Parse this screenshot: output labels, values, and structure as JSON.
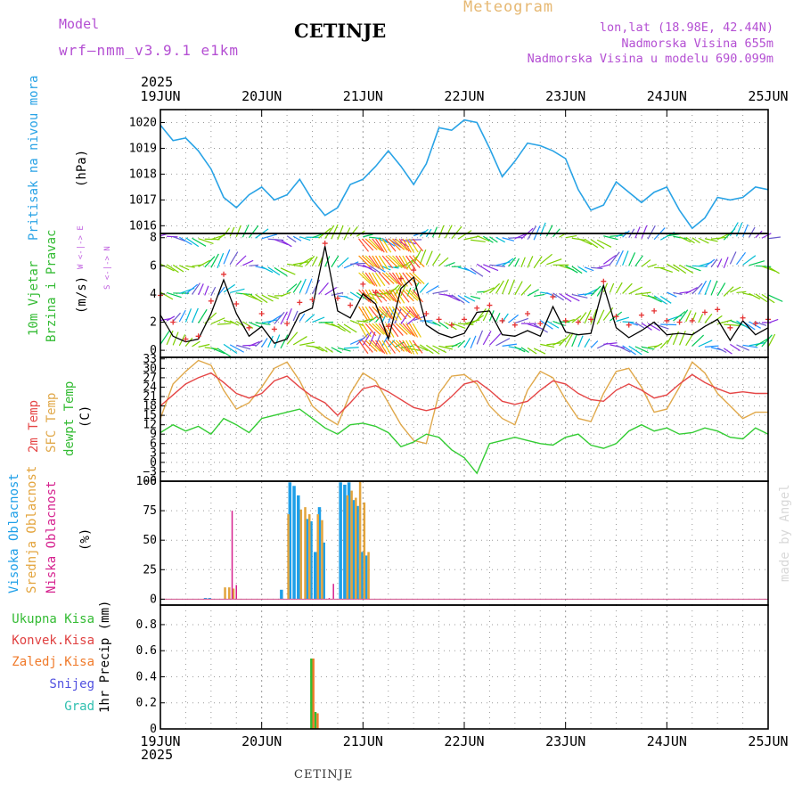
{
  "header": {
    "model_label": "Model",
    "model_name": "wrf—nmm_v3.9.1  e1km",
    "station": "CETINJE",
    "meteogram": "Meteogram",
    "lonlat": "lon,lat (18.98E, 42.44N)",
    "altitude": "Nadmorska Visina 655m",
    "model_altitude": "Nadmorska Visina u modelu 690.099m",
    "year_top": "2025",
    "year_bottom": "2025",
    "footer_station": "CETINJE",
    "watermark": "made by Angel"
  },
  "colors": {
    "pressure": "#29a3e6",
    "temp2m": "#e54646",
    "sfc_temp": "#e0a84a",
    "dewpoint": "#33cc33",
    "wind_speed": "#000000",
    "gust": "#e53333",
    "high_cloud": "#1e9fe8",
    "mid_cloud": "#e3a43c",
    "low_cloud": "#d6228f",
    "total_precip": "#33bb33",
    "conv_precip": "#e04040",
    "frozen_precip": "#f07a2a",
    "snow": "#5050e0",
    "graupel": "#30c0b0"
  },
  "x_axis": {
    "tick_labels": [
      "19JUN",
      "20JUN",
      "21JUN",
      "22JUN",
      "23JUN",
      "24JUN",
      "25JUN"
    ]
  },
  "panels": {
    "pressure": {
      "ylabel_1": "Pritisak na nivou mora",
      "ylabel_2": "(hPa)"
    },
    "wind": {
      "ylabel_1": "10m Vjetar",
      "ylabel_2": "Brzina i Pravac",
      "ylabel_3": "(m/s)",
      "compass": "W <-|-> E",
      "compass2": "S <-|-> N"
    },
    "temp": {
      "ylabel_1": "2m Temp",
      "ylabel_2": "SFC Temp",
      "ylabel_3": "dewpt Temp",
      "ylabel_4": "(C)"
    },
    "cloud": {
      "ylabel_1": "Visoka Oblacnost",
      "ylabel_2": "Srednja Oblacnost",
      "ylabel_3": "Niska Oblacnost",
      "ylabel_4": "(%)"
    },
    "precip": {
      "ylabel": "1hr Precip (mm)",
      "legend": [
        "Ukupna Kisa",
        "Konvek.Kisa",
        "Zaledj.Kisa",
        "Snijeg",
        "Grad"
      ]
    }
  },
  "chart_data": [
    {
      "type": "line",
      "title": "Pritisak na nivou mora",
      "ylabel": "(hPa)",
      "ylim": [
        1015.7,
        1020.5
      ],
      "yticks": [
        1016,
        1017,
        1018,
        1019,
        1020
      ],
      "x_hours": [
        0,
        3,
        6,
        9,
        12,
        15,
        18,
        21,
        24,
        27,
        30,
        33,
        36,
        39,
        42,
        45,
        48,
        51,
        54,
        57,
        60,
        63,
        66,
        69,
        72,
        75,
        78,
        81,
        84,
        87,
        90,
        93,
        96,
        99,
        102,
        105,
        108,
        111,
        114,
        117,
        120,
        123,
        126,
        129,
        132,
        135,
        138,
        141,
        144
      ],
      "series": [
        {
          "values": [
            1019.9,
            1019.3,
            1019.4,
            1018.9,
            1018.2,
            1017.1,
            1016.7,
            1017.2,
            1017.5,
            1017.0,
            1017.2,
            1017.8,
            1017.0,
            1016.4,
            1016.7,
            1017.6,
            1017.8,
            1018.3,
            1018.9,
            1018.3,
            1017.6,
            1018.4,
            1019.8,
            1019.7,
            1020.1,
            1020.0,
            1019.0,
            1017.9,
            1018.5,
            1019.2,
            1019.1,
            1018.9,
            1018.6,
            1017.4,
            1016.6,
            1016.8,
            1017.7,
            1017.3,
            1016.9,
            1017.3,
            1017.5,
            1016.6,
            1015.9,
            1016.3,
            1017.1,
            1017.0,
            1017.1,
            1017.5,
            1017.4
          ]
        }
      ],
      "grid": true
    },
    {
      "type": "line",
      "title": "10m Vjetar Brzina i Pravac",
      "ylabel": "(m/s)",
      "ylim": [
        -0.5,
        8.3
      ],
      "yticks": [
        0,
        2,
        4,
        6,
        8
      ],
      "x_hours": [
        0,
        3,
        6,
        9,
        12,
        15,
        18,
        21,
        24,
        27,
        30,
        33,
        36,
        39,
        42,
        45,
        48,
        51,
        54,
        57,
        60,
        63,
        66,
        69,
        72,
        75,
        78,
        81,
        84,
        87,
        90,
        93,
        96,
        99,
        102,
        105,
        108,
        111,
        114,
        117,
        120,
        123,
        126,
        129,
        132,
        135,
        138,
        141,
        144
      ],
      "series": [
        {
          "values": [
            2.5,
            1.0,
            0.6,
            0.8,
            2.6,
            5.0,
            2.6,
            1.0,
            1.7,
            0.5,
            0.8,
            2.6,
            3.0,
            7.4,
            2.8,
            2.3,
            4.0,
            3.3,
            0.8,
            4.4,
            5.2,
            1.8,
            1.2,
            0.9,
            1.2,
            2.7,
            2.8,
            1.1,
            1.0,
            1.4,
            1.0,
            3.1,
            1.3,
            1.1,
            1.2,
            4.6,
            1.6,
            0.9,
            1.4,
            2.0,
            1.1,
            1.2,
            1.1,
            1.7,
            2.2,
            0.7,
            2.1,
            1.1,
            1.6
          ]
        },
        {
          "values": [
            3.9,
            2.0,
            0.8,
            1.0,
            3.5,
            5.4,
            3.3,
            1.6,
            2.6,
            1.5,
            1.9,
            3.4,
            3.6,
            7.6,
            3.7,
            3.2,
            4.7,
            4.1,
            1.7,
            5.1,
            5.7,
            2.6,
            2.2,
            1.8,
            2.2,
            3.0,
            3.2,
            2.1,
            1.8,
            2.6,
            1.9,
            3.8,
            2.1,
            2.0,
            2.2,
            4.9,
            2.4,
            1.8,
            2.5,
            2.8,
            2.1,
            2.0,
            2.1,
            2.7,
            2.9,
            1.6,
            2.3,
            1.9,
            2.2
          ]
        }
      ],
      "grid": true
    },
    {
      "type": "line",
      "title": "2m Temp / SFC Temp / dewpt Temp",
      "ylabel": "(C)",
      "ylim": [
        -6,
        33.5
      ],
      "yticks": [
        -6,
        -3,
        0,
        3,
        6,
        9,
        12,
        15,
        18,
        21,
        24,
        27,
        30,
        33
      ],
      "x_hours": [
        0,
        3,
        6,
        9,
        12,
        15,
        18,
        21,
        24,
        27,
        30,
        33,
        36,
        39,
        42,
        45,
        48,
        51,
        54,
        57,
        60,
        63,
        66,
        69,
        72,
        75,
        78,
        81,
        84,
        87,
        90,
        93,
        96,
        99,
        102,
        105,
        108,
        111,
        114,
        117,
        120,
        123,
        126,
        129,
        132,
        135,
        138,
        141,
        144
      ],
      "series": [
        {
          "name": "2m Temp",
          "values": [
            18.0,
            21.5,
            25.0,
            27.0,
            28.5,
            25.5,
            22.0,
            20.5,
            22.0,
            26.0,
            27.5,
            24.0,
            21.0,
            19.0,
            15.0,
            19.0,
            23.5,
            24.5,
            22.5,
            20.0,
            17.5,
            16.5,
            17.5,
            21.0,
            25.0,
            26.0,
            23.0,
            19.5,
            18.5,
            19.5,
            23.0,
            26.0,
            25.0,
            22.0,
            20.0,
            19.5,
            23.0,
            25.0,
            23.0,
            20.5,
            21.5,
            25.0,
            28.0,
            25.5,
            23.5,
            22.0,
            22.5,
            22.0,
            22.0
          ]
        },
        {
          "name": "SFC Temp",
          "values": [
            14.0,
            25.0,
            29.0,
            32.5,
            31.0,
            23.0,
            17.0,
            19.0,
            24.0,
            30.0,
            32.0,
            26.0,
            18.0,
            14.5,
            12.0,
            22.0,
            28.5,
            26.0,
            19.0,
            12.0,
            7.0,
            6.0,
            22.0,
            27.5,
            28.0,
            25.0,
            18.0,
            14.0,
            12.0,
            23.0,
            29.0,
            27.0,
            20.0,
            14.0,
            13.0,
            22.0,
            29.0,
            30.0,
            24.0,
            16.0,
            17.0,
            24.0,
            32.0,
            28.5,
            22.0,
            18.0,
            14.0,
            16.0,
            16.0
          ]
        },
        {
          "name": "dewpt Temp",
          "values": [
            9.5,
            12.0,
            10.0,
            11.5,
            9.0,
            14.0,
            12.0,
            9.5,
            14.0,
            15.0,
            16.0,
            17.0,
            14.0,
            11.0,
            9.0,
            12.0,
            12.5,
            11.5,
            9.5,
            5.0,
            6.5,
            9.0,
            8.0,
            4.0,
            1.5,
            -3.5,
            6.0,
            7.0,
            8.0,
            7.0,
            6.0,
            5.5,
            8.0,
            9.0,
            5.5,
            4.5,
            6.0,
            10.0,
            12.0,
            10.0,
            11.0,
            9.0,
            9.5,
            11.0,
            10.0,
            8.0,
            7.5,
            11.0,
            9.0
          ]
        }
      ],
      "grid": true
    },
    {
      "type": "bar",
      "title": "Visoka / Srednja / Niska Oblacnost",
      "ylabel": "(%)",
      "ylim": [
        -5,
        100
      ],
      "yticks": [
        0,
        25,
        50,
        75,
        100
      ],
      "series": [
        {
          "name": "Visoka Oblacnost",
          "bars": [
            [
              11,
              1
            ],
            [
              12,
              1
            ],
            [
              29,
              8
            ],
            [
              31,
              99
            ],
            [
              32,
              96
            ],
            [
              33,
              88
            ],
            [
              35,
              68
            ],
            [
              36,
              66
            ],
            [
              37,
              40
            ],
            [
              38,
              78
            ],
            [
              39,
              48
            ],
            [
              43,
              99
            ],
            [
              44,
              97
            ],
            [
              45,
              99
            ],
            [
              46,
              84
            ],
            [
              47,
              79
            ],
            [
              48,
              40
            ],
            [
              49,
              37
            ]
          ]
        },
        {
          "name": "Srednja Oblacnost",
          "bars": [
            [
              15,
              10
            ],
            [
              16,
              10
            ],
            [
              17,
              9
            ],
            [
              30,
              72
            ],
            [
              33,
              76
            ],
            [
              34,
              78
            ],
            [
              35,
              72
            ],
            [
              37,
              72
            ],
            [
              38,
              67
            ],
            [
              44,
              88
            ],
            [
              45,
              92
            ],
            [
              46,
              86
            ],
            [
              47,
              100
            ],
            [
              48,
              82
            ],
            [
              49,
              40
            ]
          ]
        },
        {
          "name": "Niska Oblacnost",
          "bars": [
            [
              17,
              75
            ],
            [
              18,
              12
            ],
            [
              40,
              1
            ],
            [
              41,
              13
            ]
          ]
        }
      ],
      "grid": true
    },
    {
      "type": "bar",
      "title": "1hr Precip (mm)",
      "ylabel": "1hr Precip (mm)",
      "ylim": [
        0,
        0.95
      ],
      "yticks": [
        0,
        0.2,
        0.4,
        0.6,
        0.8
      ],
      "series": [
        {
          "name": "Ukupna Kisa",
          "bars": [
            [
              36,
              0.54
            ],
            [
              37,
              0.13
            ]
          ]
        },
        {
          "name": "Konvek.Kisa",
          "bars": []
        },
        {
          "name": "Zaledj.Kisa",
          "bars": [
            [
              36,
              0.54
            ],
            [
              37,
              0.12
            ]
          ]
        },
        {
          "name": "Snijeg",
          "bars": []
        },
        {
          "name": "Grad",
          "bars": []
        }
      ],
      "grid": true
    }
  ]
}
